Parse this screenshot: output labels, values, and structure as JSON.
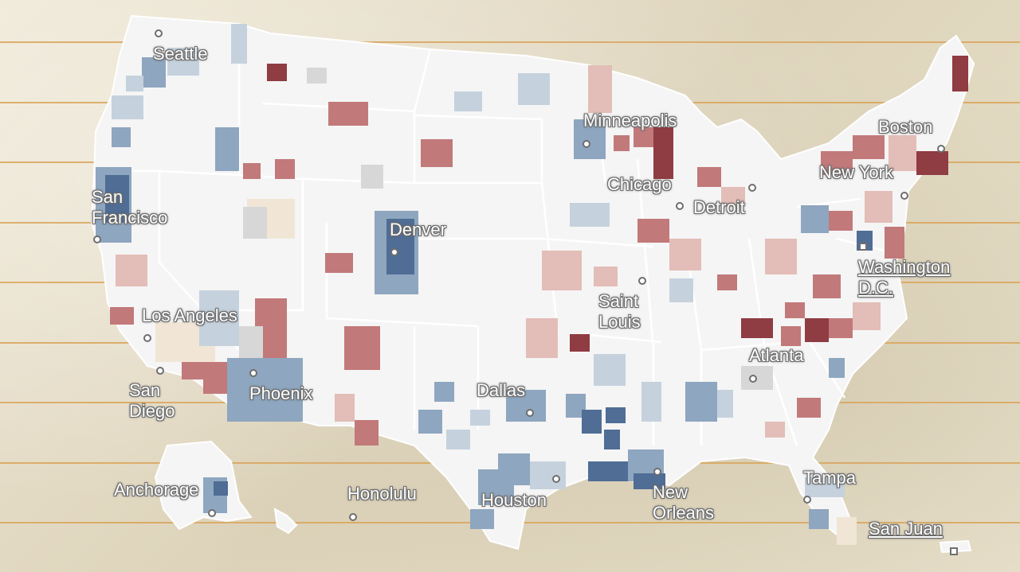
{
  "map": {
    "cities": [
      {
        "id": "seattle",
        "name": "Seattle",
        "marker": "circle"
      },
      {
        "id": "minneapolis",
        "name": "Minneapolis",
        "marker": "circle"
      },
      {
        "id": "boston",
        "name": "Boston",
        "marker": "circle"
      },
      {
        "id": "new-york",
        "name": "New York",
        "marker": "circle"
      },
      {
        "id": "chicago",
        "name": "Chicago",
        "marker": "circle"
      },
      {
        "id": "detroit",
        "name": "Detroit",
        "marker": "circle"
      },
      {
        "id": "san-francisco",
        "name": "San\nFrancisco",
        "marker": "circle"
      },
      {
        "id": "denver",
        "name": "Denver",
        "marker": "circle"
      },
      {
        "id": "washington-dc",
        "name": "Washington\nD.C.",
        "marker": "square",
        "link": true
      },
      {
        "id": "saint-louis",
        "name": "Saint\nLouis",
        "marker": "circle"
      },
      {
        "id": "los-angeles",
        "name": "Los Angeles",
        "marker": "circle"
      },
      {
        "id": "atlanta",
        "name": "Atlanta",
        "marker": "circle"
      },
      {
        "id": "san-diego",
        "name": "San\nDiego",
        "marker": "circle"
      },
      {
        "id": "phoenix",
        "name": "Phoenix",
        "marker": "circle"
      },
      {
        "id": "dallas",
        "name": "Dallas",
        "marker": "circle"
      },
      {
        "id": "anchorage",
        "name": "Anchorage",
        "marker": "circle"
      },
      {
        "id": "honolulu",
        "name": "Honolulu",
        "marker": "circle"
      },
      {
        "id": "houston",
        "name": "Houston",
        "marker": "circle"
      },
      {
        "id": "new-orleans",
        "name": "New\nOrleans",
        "marker": "circle"
      },
      {
        "id": "tampa",
        "name": "Tampa",
        "marker": "circle"
      },
      {
        "id": "san-juan",
        "name": "San Juan",
        "marker": "square",
        "link": true
      }
    ],
    "colors": {
      "land": "#f5f5f5",
      "border": "#ffffff",
      "blue_dark": "#4f6d95",
      "blue_mid": "#8ea6bf",
      "blue_light": "#c5d2de",
      "red_dark": "#8f3c42",
      "red_mid": "#c2797a",
      "red_light": "#e3bdb7",
      "beige": "#f1e6d6",
      "grey": "#d7d7d7",
      "rule": "#d9a45a"
    }
  }
}
